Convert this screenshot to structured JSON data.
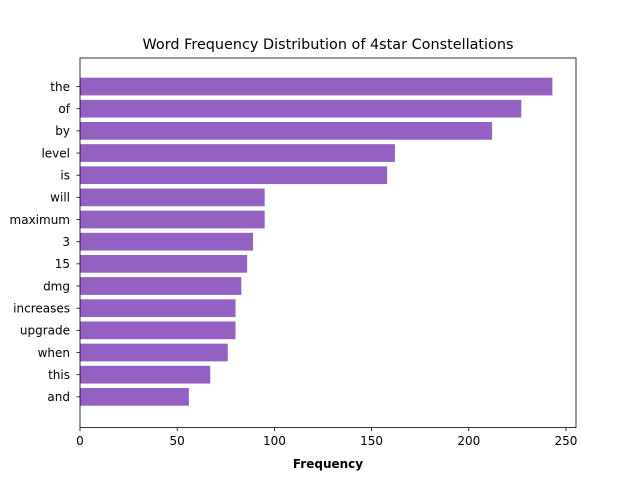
{
  "chart_data": {
    "type": "bar",
    "orientation": "horizontal",
    "title": "Word Frequency Distribution of 4star Constellations",
    "xlabel": "Frequency",
    "ylabel": "",
    "categories": [
      "the",
      "of",
      "by",
      "level",
      "is",
      "will",
      "maximum",
      "3",
      "15",
      "dmg",
      "increases",
      "upgrade",
      "when",
      "this",
      "and"
    ],
    "values": [
      243,
      227,
      212,
      162,
      158,
      95,
      95,
      89,
      86,
      83,
      80,
      80,
      76,
      67,
      56
    ],
    "xlim": [
      0,
      255.15
    ],
    "xticks": [
      0,
      50,
      100,
      150,
      200,
      250
    ],
    "grid": false,
    "bar_color": "#9460c2"
  }
}
